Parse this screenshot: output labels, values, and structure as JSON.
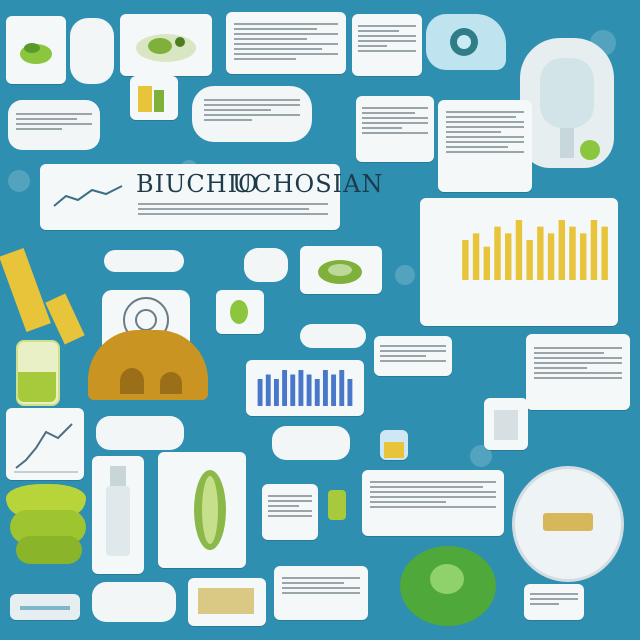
{
  "title": {
    "left": "BIUCHIO",
    "right": "UCHOSIAN"
  },
  "colors": {
    "background": "#2e8fb0",
    "paper": "#f5f8f9",
    "accent_yellow": "#e7c43a",
    "accent_green": "#8cc63f",
    "accent_blue": "#4a78c8"
  },
  "charts": {
    "yellow_bars": {
      "type": "bar",
      "values": [
        6,
        7,
        5,
        8,
        7,
        9,
        6,
        8,
        7,
        9,
        8,
        7,
        9,
        8
      ]
    },
    "blue_bars": {
      "type": "bar",
      "values": [
        6,
        7,
        6,
        8,
        7,
        8,
        7,
        6,
        8,
        7,
        8,
        6
      ]
    }
  }
}
